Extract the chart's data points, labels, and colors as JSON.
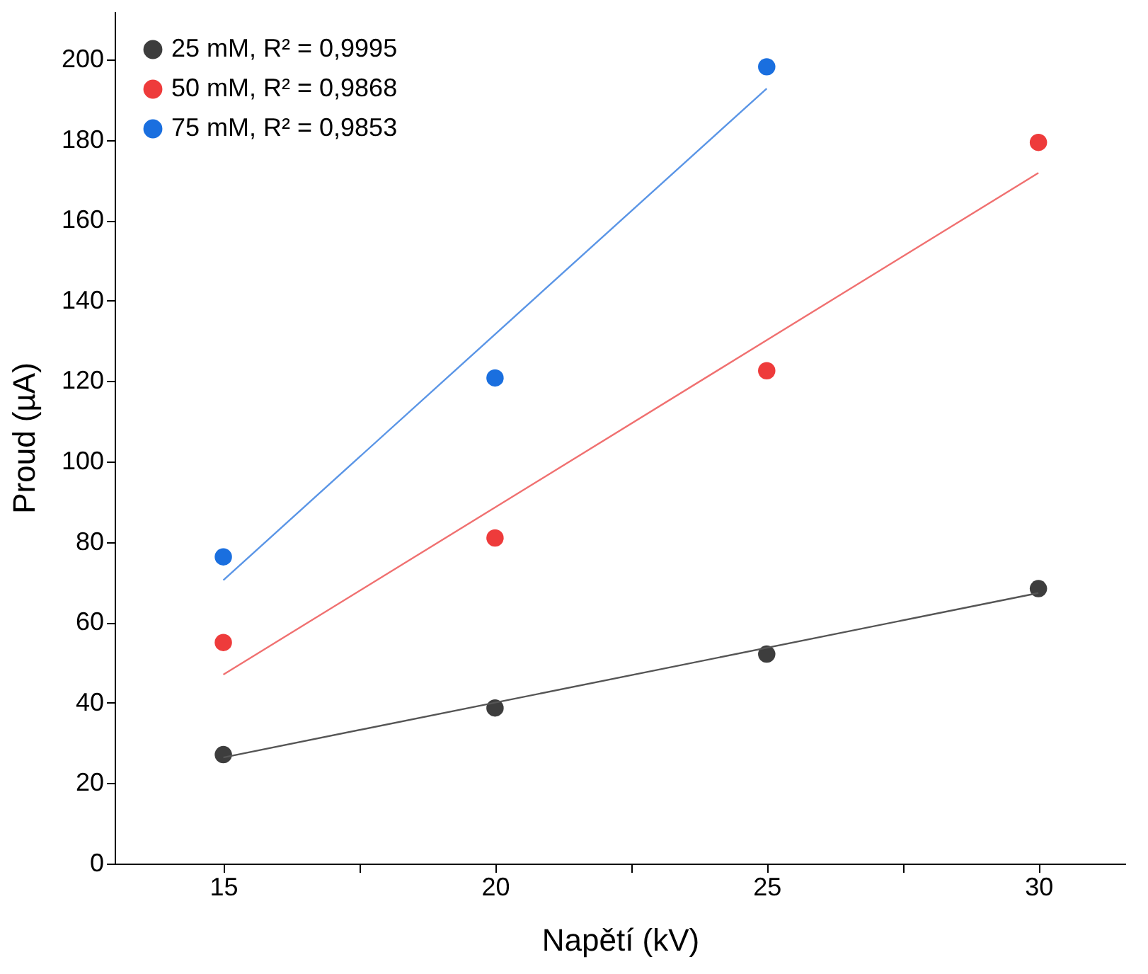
{
  "chart_data": {
    "type": "scatter",
    "xlabel": "Napětí (kV)",
    "ylabel": "Proud (µA)",
    "xlim": [
      13,
      31.6
    ],
    "ylim": [
      0,
      212
    ],
    "xticks": [
      15,
      {
        "value": 17.5,
        "label": null
      },
      20,
      {
        "value": 22.5,
        "label": null
      },
      25,
      {
        "value": 27.5,
        "label": null
      },
      30
    ],
    "yticks": [
      0,
      20,
      40,
      60,
      80,
      100,
      120,
      140,
      160,
      180,
      200
    ],
    "grid": false,
    "legend": "top left",
    "marker": "circle",
    "series": [
      {
        "name": "25 mM, R² = 0,9995",
        "color": "#3d3d3d",
        "x": [
          15,
          20,
          25,
          30
        ],
        "values": [
          27.1,
          38.7,
          52.1,
          68.4
        ]
      },
      {
        "name": "50 mM, R² = 0,9868",
        "color": "#ee3b3b",
        "x": [
          15,
          20,
          25,
          30
        ],
        "values": [
          55.0,
          81.0,
          122.6,
          179.4
        ]
      },
      {
        "name": "75 mM, R² = 0,9853",
        "color": "#1a6fdf",
        "x": [
          15,
          20,
          25
        ],
        "values": [
          76.3,
          120.8,
          198.2
        ]
      },
      {
        "type": "line",
        "color": "#555555",
        "x": [
          15,
          30
        ],
        "values": [
          26.4,
          67.3
        ],
        "line_style": "solid",
        "marker": "none"
      },
      {
        "type": "line",
        "color": "#f07070",
        "x": [
          15,
          30
        ],
        "values": [
          47.0,
          171.8
        ],
        "line_style": "solid",
        "marker": "none"
      },
      {
        "type": "line",
        "color": "#5a95e6",
        "x": [
          15,
          25
        ],
        "values": [
          70.5,
          192.8
        ],
        "line_style": "solid",
        "marker": "none"
      }
    ]
  }
}
